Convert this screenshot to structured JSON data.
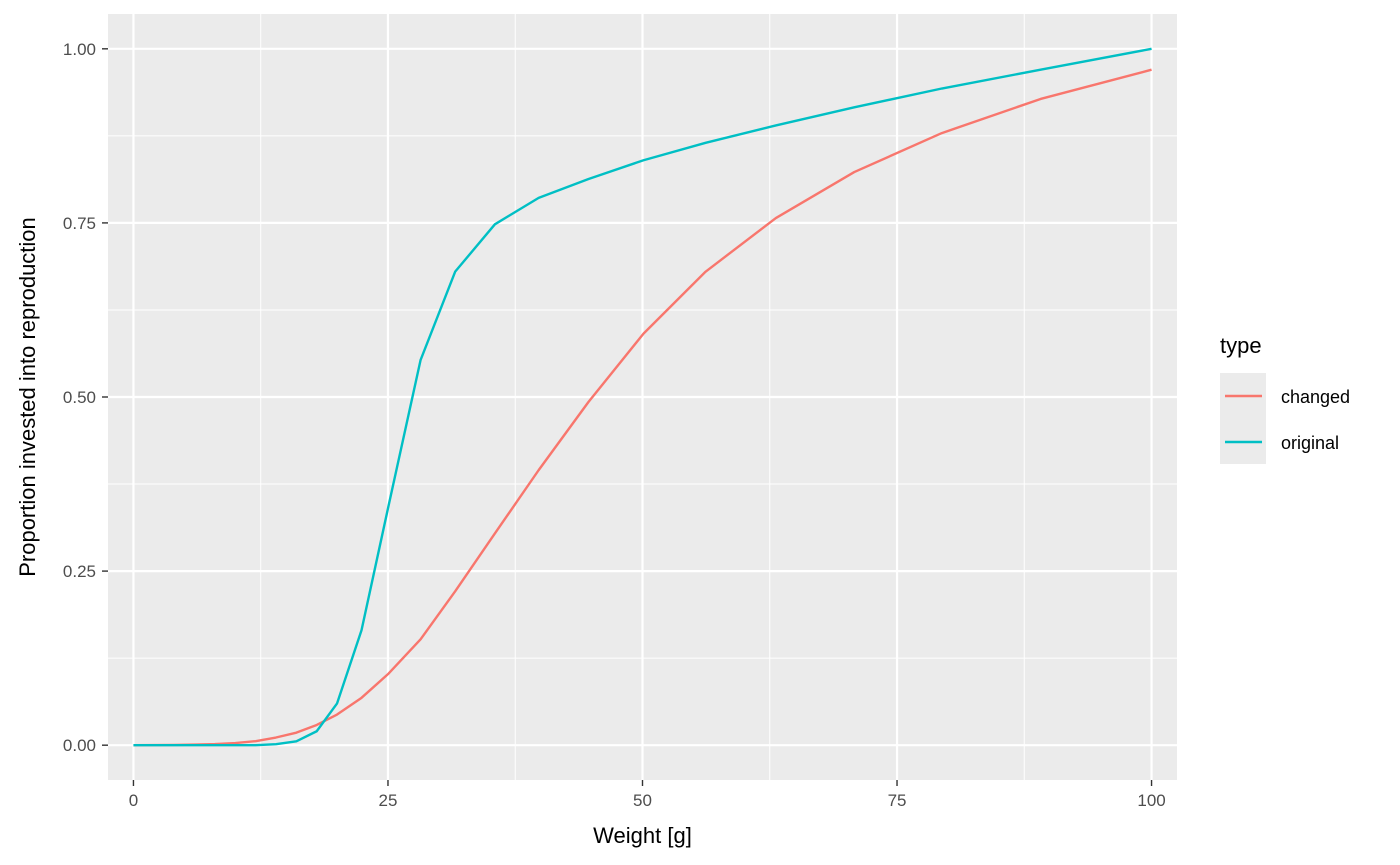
{
  "chart_data": {
    "type": "line",
    "xlabel": "Weight [g]",
    "ylabel": "Proportion invested into reproduction",
    "xlim": [
      -2.5,
      102.5
    ],
    "ylim": [
      -0.05,
      1.05
    ],
    "x_ticks": [
      0,
      25,
      50,
      75,
      100
    ],
    "x_tick_labels": [
      "0",
      "25",
      "50",
      "75",
      "100"
    ],
    "y_ticks": [
      0,
      0.25,
      0.5,
      0.75,
      1.0
    ],
    "y_tick_labels": [
      "0.00",
      "0.25",
      "0.50",
      "0.75",
      "1.00"
    ],
    "grid": true,
    "legend": {
      "title": "type",
      "position": "right"
    },
    "series": [
      {
        "name": "changed",
        "color": "#F8766D",
        "x": [
          0,
          2,
          4,
          6,
          8,
          10,
          12,
          14,
          16,
          18,
          20,
          22.4,
          25,
          28.2,
          31.6,
          35.5,
          39.8,
          44.7,
          50.1,
          56.2,
          63.1,
          70.8,
          79.4,
          89.1,
          100
        ],
        "y": [
          0,
          0.0001,
          0.0003,
          0.0008,
          0.0016,
          0.0031,
          0.0058,
          0.011,
          0.018,
          0.029,
          0.044,
          0.068,
          0.102,
          0.152,
          0.221,
          0.304,
          0.395,
          0.493,
          0.591,
          0.68,
          0.757,
          0.823,
          0.879,
          0.928,
          0.97
        ]
      },
      {
        "name": "original",
        "color": "#00BFC4",
        "x": [
          0,
          2,
          4,
          6,
          8,
          10,
          12,
          14,
          16,
          18,
          20,
          22.4,
          25,
          28.2,
          31.6,
          35.5,
          39.8,
          44.7,
          50.1,
          56.2,
          63.1,
          70.8,
          79.4,
          89.1,
          100
        ],
        "y": [
          0,
          0,
          0,
          0,
          0,
          0,
          0,
          0.0015,
          0.0055,
          0.02,
          0.06,
          0.165,
          0.34,
          0.553,
          0.68,
          0.748,
          0.786,
          0.813,
          0.84,
          0.865,
          0.89,
          0.916,
          0.943,
          0.97,
          1.0
        ]
      }
    ]
  }
}
